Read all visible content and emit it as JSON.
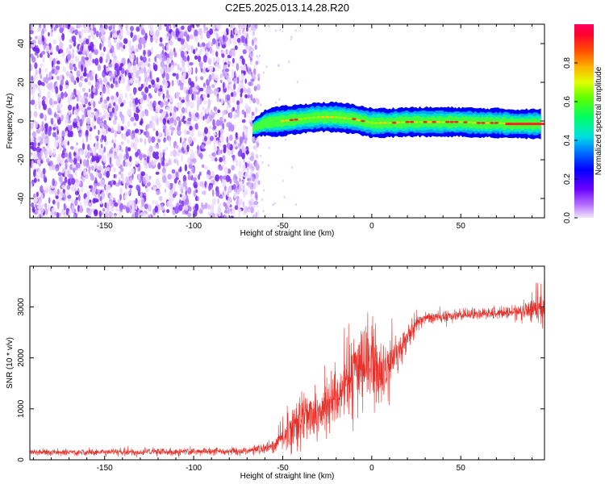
{
  "title": "C2E5.2025.013.14.28.R20",
  "chart_data": [
    {
      "type": "heatmap",
      "name": "spectrogram",
      "xlabel": "Height of straight line (km)",
      "ylabel": "Frequency (Hz)",
      "xlim": [
        -192,
        97
      ],
      "ylim": [
        -50,
        50
      ],
      "xticks": [
        -150,
        -100,
        -50,
        0,
        50
      ],
      "yticks": [
        -40,
        -20,
        0,
        20,
        40
      ],
      "noise_region_km": [
        -192,
        -67
      ],
      "signal_onset_km": -67,
      "signal_ridge": {
        "x": [
          -67,
          -60,
          -50,
          -40,
          -30,
          -20,
          -10,
          0,
          10,
          20,
          30,
          40,
          50,
          60,
          70,
          80,
          90,
          95
        ],
        "frequency_hz": [
          -4,
          -1,
          0,
          1,
          2,
          2,
          1,
          -1,
          -1,
          -0.5,
          -0.5,
          -0.5,
          -0.5,
          -1,
          -1,
          -1.5,
          -1.5,
          -1.5
        ]
      }
    },
    {
      "type": "colorbar",
      "name": "colorbar",
      "label": "Normalized spectral amplitude",
      "ticks": [
        0.0,
        0.2,
        0.4,
        0.6,
        0.8
      ],
      "range": [
        0,
        1
      ]
    },
    {
      "type": "line",
      "name": "snr",
      "xlabel": "Height of straight line (km)",
      "ylabel": "SNR (10 * v/v)",
      "xlim": [
        -192,
        97
      ],
      "ylim": [
        0,
        3800
      ],
      "xticks": [
        -150,
        -100,
        -50,
        0,
        50
      ],
      "yticks": [
        0,
        1000,
        2000,
        3000
      ],
      "color": "#e8302a",
      "envelope": {
        "x": [
          -192,
          -150,
          -100,
          -70,
          -55,
          -50,
          -45,
          -40,
          -30,
          -20,
          -15,
          -10,
          -5,
          0,
          5,
          10,
          15,
          20,
          25,
          30,
          40,
          50,
          60,
          70,
          80,
          90,
          95
        ],
        "mean": [
          150,
          150,
          160,
          170,
          250,
          450,
          700,
          850,
          1000,
          1250,
          1450,
          1700,
          2050,
          2050,
          1650,
          1800,
          2100,
          2400,
          2650,
          2800,
          2800,
          2850,
          2870,
          2880,
          2900,
          2950,
          2950
        ],
        "spread": [
          70,
          70,
          80,
          80,
          150,
          350,
          500,
          600,
          650,
          700,
          800,
          900,
          1000,
          1000,
          700,
          600,
          450,
          300,
          200,
          150,
          130,
          130,
          130,
          130,
          140,
          250,
          350
        ]
      }
    }
  ]
}
